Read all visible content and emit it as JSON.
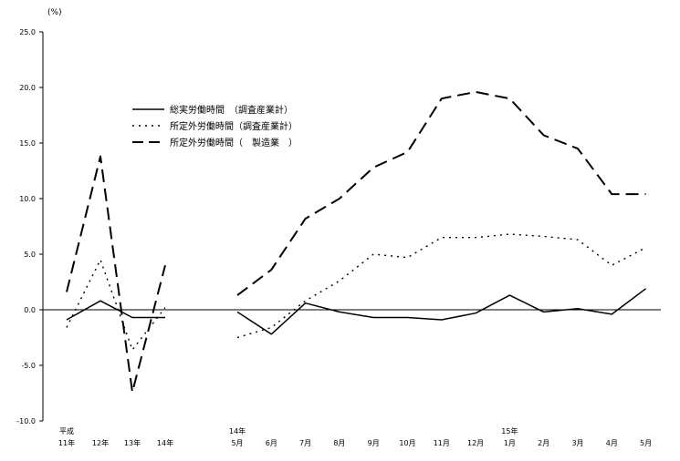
{
  "chart_data": {
    "type": "line",
    "unit_label": "(%)",
    "title": "",
    "xlabel": "",
    "ylabel": "",
    "ylim": [
      -10,
      25
    ],
    "yticks": [
      "25.0",
      "20.0",
      "15.0",
      "10.0",
      "5.0",
      "0.0",
      "-5.0",
      "-10.0"
    ],
    "grid": false,
    "legend_position": "top-left",
    "annual": {
      "era_label": "平成",
      "categories": [
        "11年",
        "12年",
        "13年",
        "14年"
      ]
    },
    "monthly": {
      "year_labels": [
        {
          "label": "14年",
          "at": 0
        },
        {
          "label": "15年",
          "at": 8
        }
      ],
      "categories": [
        "5月",
        "6月",
        "7月",
        "8月",
        "9月",
        "10月",
        "11月",
        "12月",
        "1月",
        "2月",
        "3月",
        "4月",
        "5月"
      ]
    },
    "series": [
      {
        "name": "総実労働時間　（調査産業計）",
        "style": "solid",
        "annual_values": [
          -0.9,
          0.8,
          -0.7,
          -0.7
        ],
        "monthly_values": [
          -0.2,
          -2.2,
          0.6,
          -0.2,
          -0.7,
          -0.7,
          -0.9,
          -0.3,
          1.3,
          -0.2,
          0.1,
          -0.4,
          1.9
        ]
      },
      {
        "name": "所定外労働時間（調査産業計）",
        "style": "dotted",
        "annual_values": [
          -1.6,
          4.5,
          -3.6,
          0.2
        ],
        "monthly_values": [
          -2.5,
          -1.6,
          0.8,
          2.6,
          5.0,
          4.7,
          6.5,
          6.5,
          6.8,
          6.6,
          6.3,
          4.0,
          5.6
        ]
      },
      {
        "name": "所定外労働時間（　製造業　）",
        "style": "dashed",
        "annual_values": [
          1.6,
          13.8,
          -7.4,
          4.0
        ],
        "monthly_values": [
          1.3,
          3.6,
          8.2,
          10.0,
          12.8,
          14.2,
          19.0,
          19.6,
          19.0,
          15.7,
          14.5,
          10.4,
          10.4
        ]
      }
    ]
  }
}
